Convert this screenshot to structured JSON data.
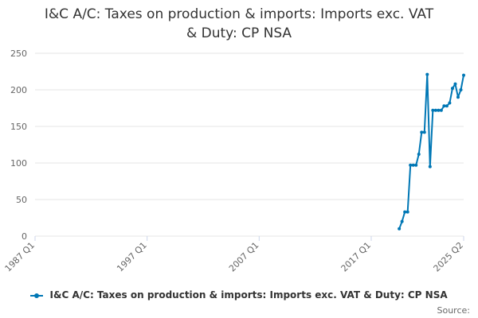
{
  "title_line1": "I&C A/C: Taxes on production & imports: Imports exc. VAT",
  "title_line2": "& Duty: CP NSA",
  "source_label": "Source:",
  "colors": {
    "series": "#0077b5",
    "grid": "#e6e6e6",
    "axis_text": "#666666"
  },
  "chart_data": {
    "type": "line",
    "title": "I&C A/C: Taxes on production & imports: Imports exc. VAT & Duty: CP NSA",
    "xlabel": "",
    "ylabel": "",
    "x_range": [
      "1987 Q1",
      "2025 Q2"
    ],
    "x_ticks": [
      "1987 Q1",
      "1997 Q1",
      "2007 Q1",
      "2017 Q1",
      "2025 Q2"
    ],
    "y_ticks": [
      0,
      50,
      100,
      150,
      200,
      250
    ],
    "ylim": [
      0,
      250
    ],
    "grid": true,
    "legend_position": "bottom",
    "series": [
      {
        "name": "I&C A/C: Taxes on production & imports: Imports exc. VAT & Duty: CP NSA",
        "x": [
          "2019 Q3",
          "2019 Q4",
          "2020 Q1",
          "2020 Q2",
          "2020 Q3",
          "2020 Q4",
          "2021 Q1",
          "2021 Q2",
          "2021 Q3",
          "2021 Q4",
          "2022 Q1",
          "2022 Q2",
          "2022 Q3",
          "2022 Q4",
          "2023 Q1",
          "2023 Q2",
          "2023 Q3",
          "2023 Q4",
          "2024 Q1",
          "2024 Q2",
          "2024 Q3",
          "2024 Q4",
          "2025 Q1",
          "2025 Q2"
        ],
        "values": [
          10,
          20,
          33,
          33,
          97,
          97,
          97,
          112,
          142,
          142,
          221,
          95,
          172,
          172,
          172,
          172,
          178,
          178,
          182,
          202,
          208,
          190,
          200,
          220
        ]
      }
    ]
  }
}
